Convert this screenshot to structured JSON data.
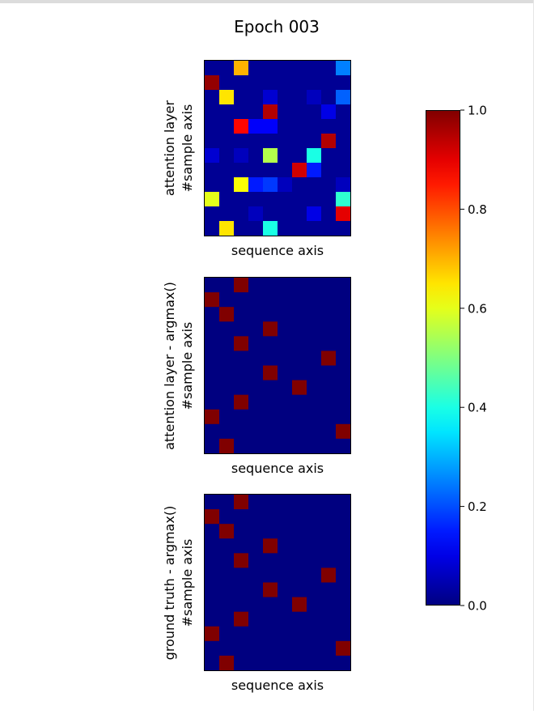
{
  "chart_data": {
    "type": "heatmap",
    "title": "Epoch 003",
    "colormap": "jet",
    "grid": false,
    "colorbar": {
      "vmin": 0.0,
      "vmax": 1.0,
      "ticks": [
        0.0,
        0.2,
        0.4,
        0.6,
        0.8,
        1.0
      ],
      "tick_labels": [
        "0.0",
        "0.2",
        "0.4",
        "0.6",
        "0.8",
        "1.0"
      ],
      "placement": "right"
    },
    "panels": [
      {
        "id": "attention",
        "ylabel": [
          "attention layer",
          "#sample axis"
        ],
        "xlabel": "sequence axis",
        "values": [
          [
            0.02,
            0.02,
            0.7,
            0.02,
            0.02,
            0.02,
            0.02,
            0.02,
            0.02,
            0.25
          ],
          [
            0.98,
            0.02,
            0.02,
            0.02,
            0.02,
            0.02,
            0.02,
            0.02,
            0.02,
            0.02
          ],
          [
            0.02,
            0.65,
            0.02,
            0.02,
            0.08,
            0.02,
            0.02,
            0.06,
            0.02,
            0.22
          ],
          [
            0.02,
            0.02,
            0.02,
            0.02,
            0.95,
            0.02,
            0.02,
            0.02,
            0.1,
            0.02
          ],
          [
            0.02,
            0.02,
            0.87,
            0.12,
            0.12,
            0.02,
            0.02,
            0.02,
            0.02,
            0.02
          ],
          [
            0.02,
            0.02,
            0.02,
            0.02,
            0.02,
            0.02,
            0.02,
            0.02,
            0.95,
            0.02
          ],
          [
            0.08,
            0.02,
            0.06,
            0.02,
            0.55,
            0.02,
            0.02,
            0.4,
            0.02,
            0.02
          ],
          [
            0.02,
            0.02,
            0.02,
            0.02,
            0.02,
            0.02,
            0.92,
            0.15,
            0.02,
            0.02
          ],
          [
            0.02,
            0.02,
            0.62,
            0.15,
            0.18,
            0.06,
            0.02,
            0.02,
            0.02,
            0.06
          ],
          [
            0.6,
            0.02,
            0.02,
            0.02,
            0.02,
            0.02,
            0.02,
            0.02,
            0.02,
            0.42
          ],
          [
            0.02,
            0.02,
            0.02,
            0.06,
            0.02,
            0.02,
            0.02,
            0.1,
            0.02,
            0.9
          ],
          [
            0.02,
            0.65,
            0.02,
            0.02,
            0.4,
            0.02,
            0.02,
            0.02,
            0.02,
            0.02
          ]
        ]
      },
      {
        "id": "attention-argmax",
        "ylabel": [
          "attention layer - argmax()",
          "#sample axis"
        ],
        "xlabel": "sequence axis",
        "values": [
          [
            0,
            0,
            1,
            0,
            0,
            0,
            0,
            0,
            0,
            0
          ],
          [
            1,
            0,
            0,
            0,
            0,
            0,
            0,
            0,
            0,
            0
          ],
          [
            0,
            1,
            0,
            0,
            0,
            0,
            0,
            0,
            0,
            0
          ],
          [
            0,
            0,
            0,
            0,
            1,
            0,
            0,
            0,
            0,
            0
          ],
          [
            0,
            0,
            1,
            0,
            0,
            0,
            0,
            0,
            0,
            0
          ],
          [
            0,
            0,
            0,
            0,
            0,
            0,
            0,
            0,
            1,
            0
          ],
          [
            0,
            0,
            0,
            0,
            1,
            0,
            0,
            0,
            0,
            0
          ],
          [
            0,
            0,
            0,
            0,
            0,
            0,
            1,
            0,
            0,
            0
          ],
          [
            0,
            0,
            1,
            0,
            0,
            0,
            0,
            0,
            0,
            0
          ],
          [
            1,
            0,
            0,
            0,
            0,
            0,
            0,
            0,
            0,
            0
          ],
          [
            0,
            0,
            0,
            0,
            0,
            0,
            0,
            0,
            0,
            1
          ],
          [
            0,
            1,
            0,
            0,
            0,
            0,
            0,
            0,
            0,
            0
          ]
        ]
      },
      {
        "id": "ground-truth-argmax",
        "ylabel": [
          "ground truth - argmax()",
          "#sample axis"
        ],
        "xlabel": "sequence axis",
        "values": [
          [
            0,
            0,
            1,
            0,
            0,
            0,
            0,
            0,
            0,
            0
          ],
          [
            1,
            0,
            0,
            0,
            0,
            0,
            0,
            0,
            0,
            0
          ],
          [
            0,
            1,
            0,
            0,
            0,
            0,
            0,
            0,
            0,
            0
          ],
          [
            0,
            0,
            0,
            0,
            1,
            0,
            0,
            0,
            0,
            0
          ],
          [
            0,
            0,
            1,
            0,
            0,
            0,
            0,
            0,
            0,
            0
          ],
          [
            0,
            0,
            0,
            0,
            0,
            0,
            0,
            0,
            1,
            0
          ],
          [
            0,
            0,
            0,
            0,
            1,
            0,
            0,
            0,
            0,
            0
          ],
          [
            0,
            0,
            0,
            0,
            0,
            0,
            1,
            0,
            0,
            0
          ],
          [
            0,
            0,
            1,
            0,
            0,
            0,
            0,
            0,
            0,
            0
          ],
          [
            1,
            0,
            0,
            0,
            0,
            0,
            0,
            0,
            0,
            0
          ],
          [
            0,
            0,
            0,
            0,
            0,
            0,
            0,
            0,
            0,
            1
          ],
          [
            0,
            1,
            0,
            0,
            0,
            0,
            0,
            0,
            0,
            0
          ]
        ]
      }
    ]
  }
}
